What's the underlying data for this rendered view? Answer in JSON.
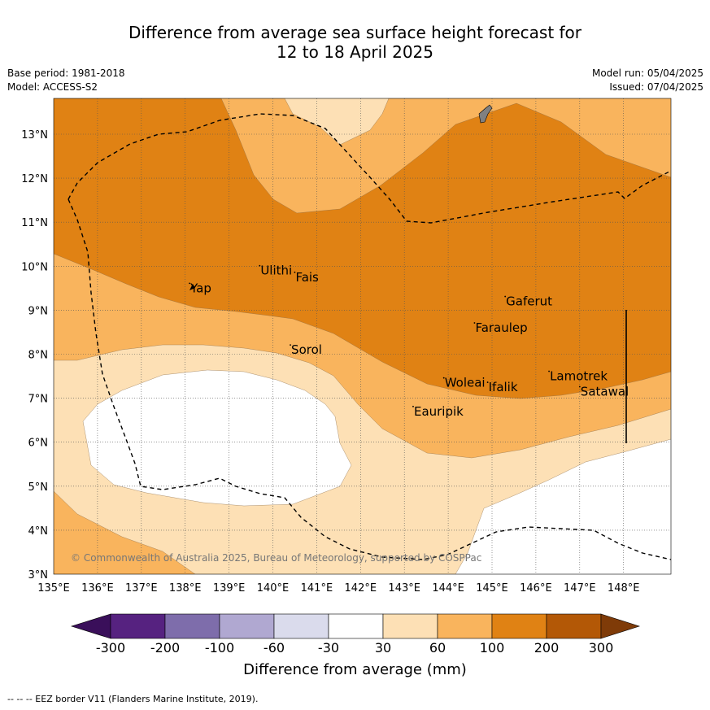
{
  "title_line1": "Difference from average sea surface height forecast for",
  "title_line2": "12 to 18 April 2025",
  "base_period": "Base period: 1981-2018",
  "model": "Model: ACCESS-S2",
  "model_run": "Model run: 05/04/2025",
  "issued": "Issued: 07/04/2025",
  "copyright": "© Commonwealth of Australia 2025, Bureau of Meteorology, supported by COSPPac",
  "footer": "--  --  -- EEZ border V11 (Flanders Marine Institute, 2019).",
  "map": {
    "lon_range": [
      135,
      149
    ],
    "lat_range": [
      3,
      13.8
    ],
    "lon_labels": [
      "135°E",
      "136°E",
      "137°E",
      "138°E",
      "139°E",
      "140°E",
      "141°E",
      "142°E",
      "143°E",
      "144°E",
      "145°E",
      "146°E",
      "147°E",
      "148°E"
    ],
    "lat_labels": [
      "3°N",
      "4°N",
      "5°N",
      "6°N",
      "7°N",
      "8°N",
      "9°N",
      "10°N",
      "11°N",
      "12°N",
      "13°N"
    ],
    "places": [
      {
        "name": "Yap",
        "lon": 138.1,
        "lat": 9.5
      },
      {
        "name": "Ulithi",
        "lon": 139.7,
        "lat": 9.9
      },
      {
        "name": "Fais",
        "lon": 140.5,
        "lat": 9.75
      },
      {
        "name": "Sorol",
        "lon": 140.4,
        "lat": 8.1
      },
      {
        "name": "Gaferut",
        "lon": 145.3,
        "lat": 9.2
      },
      {
        "name": "Faraulep",
        "lon": 144.6,
        "lat": 8.6
      },
      {
        "name": "Woleai",
        "lon": 143.9,
        "lat": 7.35
      },
      {
        "name": "Ifalik",
        "lon": 144.9,
        "lat": 7.25
      },
      {
        "name": "Lamotrek",
        "lon": 146.3,
        "lat": 7.5
      },
      {
        "name": "Satawal",
        "lon": 147.0,
        "lat": 7.15
      },
      {
        "name": "Eauripik",
        "lon": 143.2,
        "lat": 6.7
      }
    ]
  },
  "legend": {
    "title": "Difference from average (mm)",
    "labels": [
      "-300",
      "-200",
      "-100",
      "-60",
      "-30",
      "30",
      "60",
      "100",
      "200",
      "300"
    ],
    "colors": [
      "#3a0f5a",
      "#562280",
      "#7e6dab",
      "#b0a8d1",
      "#dadbec",
      "#ffffff",
      "#fde0b5",
      "#f9b45d",
      "#e08214",
      "#b35806",
      "#7f3b08"
    ]
  }
}
